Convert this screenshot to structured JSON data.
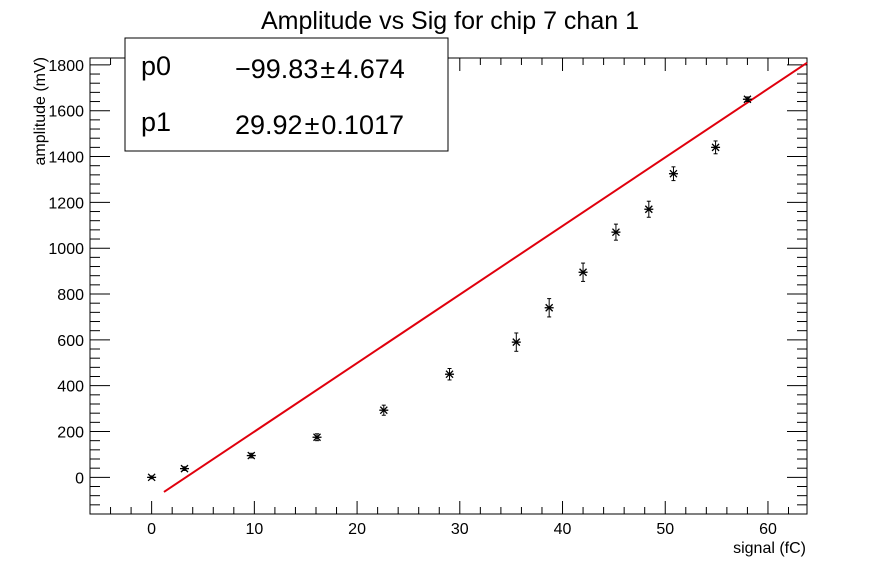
{
  "chart_data": {
    "type": "scatter",
    "title": "Amplitude vs Sig for chip 7 chan 1",
    "xlabel": "signal (fC)",
    "ylabel": "amplitude (mV)",
    "xlim": [
      -6,
      63.8
    ],
    "ylim": [
      -160,
      1830
    ],
    "x_ticks": [
      0,
      10,
      20,
      30,
      40,
      50,
      60
    ],
    "y_ticks": [
      0,
      200,
      400,
      600,
      800,
      1000,
      1200,
      1400,
      1600,
      1800
    ],
    "grid": false,
    "series": [
      {
        "kind": "points-with-errors",
        "color": "#000000",
        "x": [
          0.0,
          3.2,
          9.7,
          16.1,
          22.6,
          29.0,
          35.5,
          38.7,
          42.0,
          45.2,
          48.4,
          50.8,
          54.9,
          58.0
        ],
        "y": [
          0,
          38,
          95,
          175,
          293,
          450,
          590,
          740,
          895,
          1070,
          1170,
          1325,
          1440,
          1650
        ],
        "yerr": [
          6,
          8,
          10,
          15,
          22,
          25,
          40,
          40,
          40,
          35,
          35,
          30,
          28,
          10
        ]
      },
      {
        "kind": "fit-line",
        "color": "#e0000d",
        "x": [
          1.2,
          63.8
        ],
        "y": [
          -63.9,
          1809.1
        ]
      }
    ],
    "stats_box": {
      "position": "top-left",
      "rows": [
        {
          "name": "p0",
          "value": "−99.83",
          "pm": "±",
          "error": "4.674"
        },
        {
          "name": "p1",
          "value": "29.92",
          "pm": "±",
          "error": "0.1017"
        }
      ]
    }
  }
}
